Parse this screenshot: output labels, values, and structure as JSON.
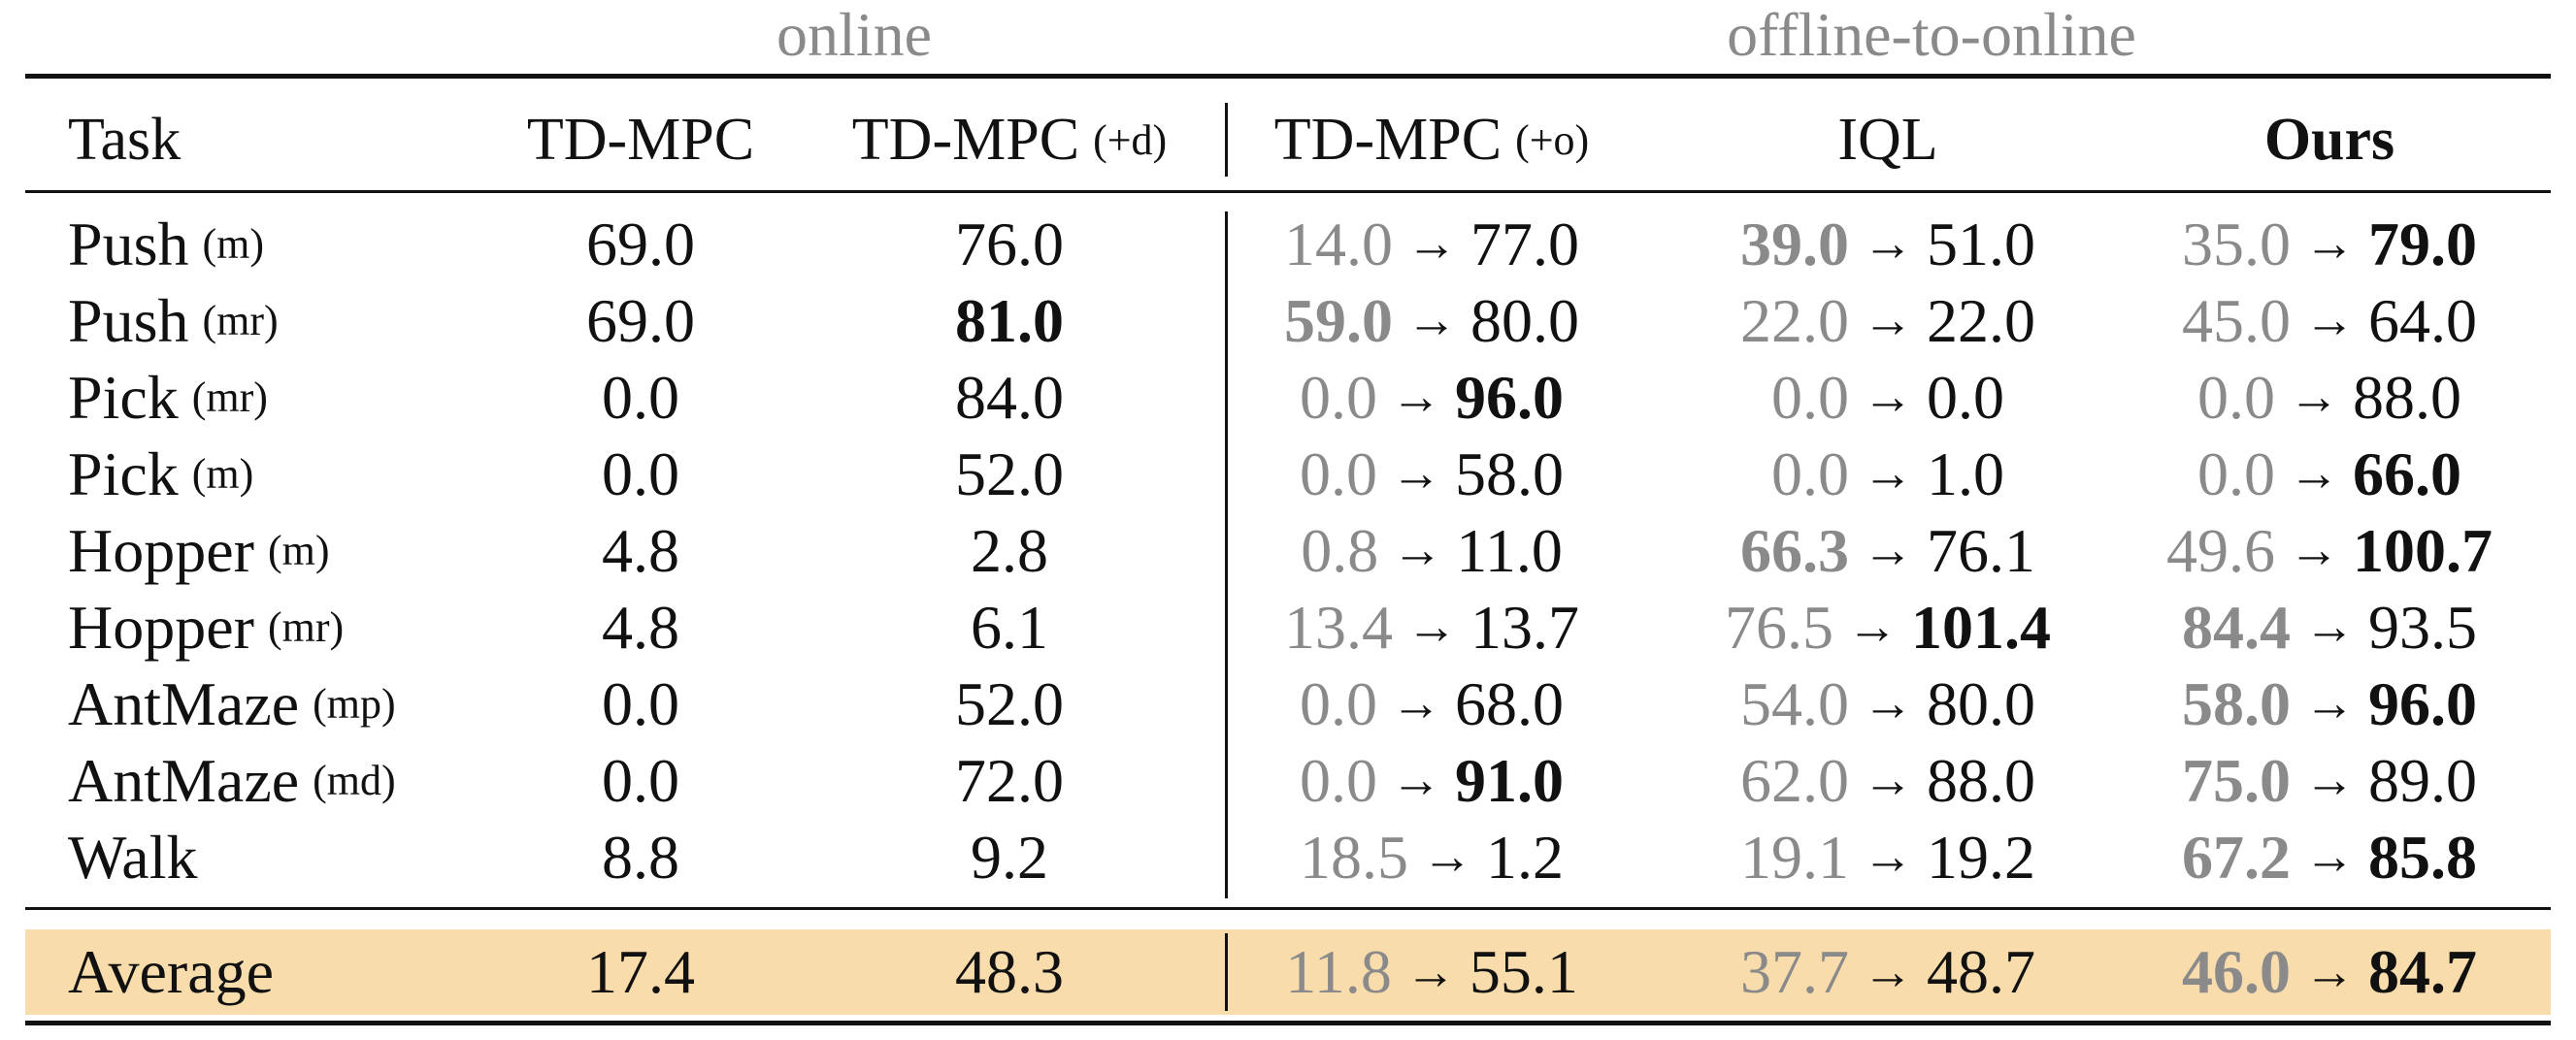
{
  "groups": [
    "online",
    "offline-to-online"
  ],
  "columns": [
    {
      "name": "Task",
      "suffix": "",
      "bold": false
    },
    {
      "name": "TD-MPC",
      "suffix": "",
      "bold": false
    },
    {
      "name": "TD-MPC",
      "suffix": "(+d)",
      "bold": false
    },
    {
      "name": "TD-MPC",
      "suffix": "(+o)",
      "bold": false
    },
    {
      "name": "IQL",
      "suffix": "",
      "bold": false
    },
    {
      "name": "Ours",
      "suffix": "",
      "bold": true
    }
  ],
  "arrow": "→",
  "rows": [
    {
      "task": "Push",
      "variant": "(m)",
      "tdmpc": "69.0",
      "tdmpc_d": {
        "v": "76.0",
        "bold": false
      },
      "pairs": [
        {
          "off": "14.0",
          "on": "77.0",
          "off_bold": false,
          "on_bold": false
        },
        {
          "off": "39.0",
          "on": "51.0",
          "off_bold": true,
          "on_bold": false
        },
        {
          "off": "35.0",
          "on": "79.0",
          "off_bold": false,
          "on_bold": true
        }
      ]
    },
    {
      "task": "Push",
      "variant": "(mr)",
      "tdmpc": "69.0",
      "tdmpc_d": {
        "v": "81.0",
        "bold": true
      },
      "pairs": [
        {
          "off": "59.0",
          "on": "80.0",
          "off_bold": true,
          "on_bold": false
        },
        {
          "off": "22.0",
          "on": "22.0",
          "off_bold": false,
          "on_bold": false
        },
        {
          "off": "45.0",
          "on": "64.0",
          "off_bold": false,
          "on_bold": false
        }
      ]
    },
    {
      "task": "Pick",
      "variant": "(mr)",
      "tdmpc": "0.0",
      "tdmpc_d": {
        "v": "84.0",
        "bold": false
      },
      "pairs": [
        {
          "off": "0.0",
          "on": "96.0",
          "off_bold": false,
          "on_bold": true
        },
        {
          "off": "0.0",
          "on": "0.0",
          "off_bold": false,
          "on_bold": false
        },
        {
          "off": "0.0",
          "on": "88.0",
          "off_bold": false,
          "on_bold": false
        }
      ]
    },
    {
      "task": "Pick",
      "variant": "(m)",
      "tdmpc": "0.0",
      "tdmpc_d": {
        "v": "52.0",
        "bold": false
      },
      "pairs": [
        {
          "off": "0.0",
          "on": "58.0",
          "off_bold": false,
          "on_bold": false
        },
        {
          "off": "0.0",
          "on": "1.0",
          "off_bold": false,
          "on_bold": false
        },
        {
          "off": "0.0",
          "on": "66.0",
          "off_bold": false,
          "on_bold": true
        }
      ]
    },
    {
      "task": "Hopper",
      "variant": "(m)",
      "tdmpc": "4.8",
      "tdmpc_d": {
        "v": "2.8",
        "bold": false
      },
      "pairs": [
        {
          "off": "0.8",
          "on": "11.0",
          "off_bold": false,
          "on_bold": false
        },
        {
          "off": "66.3",
          "on": "76.1",
          "off_bold": true,
          "on_bold": false
        },
        {
          "off": "49.6",
          "on": "100.7",
          "off_bold": false,
          "on_bold": true
        }
      ]
    },
    {
      "task": "Hopper",
      "variant": "(mr)",
      "tdmpc": "4.8",
      "tdmpc_d": {
        "v": "6.1",
        "bold": false
      },
      "pairs": [
        {
          "off": "13.4",
          "on": "13.7",
          "off_bold": false,
          "on_bold": false
        },
        {
          "off": "76.5",
          "on": "101.4",
          "off_bold": false,
          "on_bold": true
        },
        {
          "off": "84.4",
          "on": "93.5",
          "off_bold": true,
          "on_bold": false
        }
      ]
    },
    {
      "task": "AntMaze",
      "variant": "(mp)",
      "tdmpc": "0.0",
      "tdmpc_d": {
        "v": "52.0",
        "bold": false
      },
      "pairs": [
        {
          "off": "0.0",
          "on": "68.0",
          "off_bold": false,
          "on_bold": false
        },
        {
          "off": "54.0",
          "on": "80.0",
          "off_bold": false,
          "on_bold": false
        },
        {
          "off": "58.0",
          "on": "96.0",
          "off_bold": true,
          "on_bold": true
        }
      ]
    },
    {
      "task": "AntMaze",
      "variant": "(md)",
      "tdmpc": "0.0",
      "tdmpc_d": {
        "v": "72.0",
        "bold": false
      },
      "pairs": [
        {
          "off": "0.0",
          "on": "91.0",
          "off_bold": false,
          "on_bold": true
        },
        {
          "off": "62.0",
          "on": "88.0",
          "off_bold": false,
          "on_bold": false
        },
        {
          "off": "75.0",
          "on": "89.0",
          "off_bold": true,
          "on_bold": false
        }
      ]
    },
    {
      "task": "Walk",
      "variant": "",
      "tdmpc": "8.8",
      "tdmpc_d": {
        "v": "9.2",
        "bold": false
      },
      "pairs": [
        {
          "off": "18.5",
          "on": "1.2",
          "off_bold": false,
          "on_bold": false
        },
        {
          "off": "19.1",
          "on": "19.2",
          "off_bold": false,
          "on_bold": false
        },
        {
          "off": "67.2",
          "on": "85.8",
          "off_bold": true,
          "on_bold": true
        }
      ]
    }
  ],
  "average": {
    "task": "Average",
    "variant": "",
    "tdmpc": "17.4",
    "tdmpc_d": {
      "v": "48.3",
      "bold": false
    },
    "pairs": [
      {
        "off": "11.8",
        "on": "55.1",
        "off_bold": false,
        "on_bold": false
      },
      {
        "off": "37.7",
        "on": "48.7",
        "off_bold": false,
        "on_bold": false
      },
      {
        "off": "46.0",
        "on": "84.7",
        "off_bold": true,
        "on_bold": true
      }
    ]
  },
  "colors": {
    "muted": "#8a8a8a",
    "highlight": "#f9dcab",
    "text": "#111111"
  }
}
